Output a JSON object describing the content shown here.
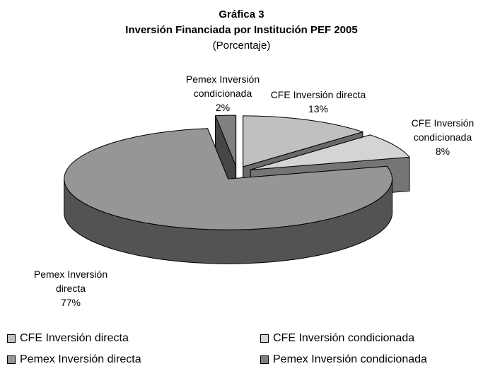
{
  "chart_data": {
    "type": "pie3d",
    "title": "Gráfica 3",
    "subtitle": "Inversión Financiada por Institución PEF 2005",
    "unit_label": "(Porcentaje)",
    "categories": [
      "CFE Inversión directa",
      "CFE Inversión condicionada",
      "Pemex Inversión directa",
      "Pemex Inversión condicionada"
    ],
    "values": [
      13,
      8,
      77,
      2
    ],
    "value_labels": [
      "13%",
      "8%",
      "77%",
      "2%"
    ],
    "colors": [
      "#c0c0c0",
      "#d4d4d4",
      "#969696",
      "#808080"
    ],
    "legend": "bottom"
  }
}
